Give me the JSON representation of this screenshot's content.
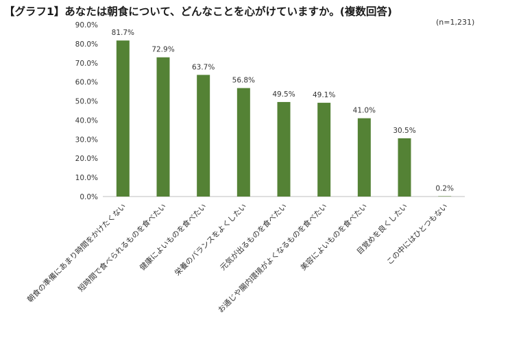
{
  "title": "【グラフ1】あなたは朝食について、どんなことを心がけていますか。(複数回答)",
  "note": "(n=1,231)",
  "colors": {
    "bar": "#548235",
    "axis": "#bfbfbf"
  },
  "chart_data": {
    "type": "bar",
    "categories": [
      "朝食の準備にあまり時間をかけたくない",
      "短時間で食べられるものを食べたい",
      "健康によいものを食べたい",
      "栄養のバランスをよくしたい",
      "元気が出るものを食べたい",
      "お通じや腸内環境がよくなるものを食べたい",
      "美容によいものを食べたい",
      "目覚めを良くしたい",
      "この中にはひとつもない"
    ],
    "values": [
      81.7,
      72.9,
      63.7,
      56.8,
      49.5,
      49.1,
      41.0,
      30.5,
      0.2
    ],
    "value_labels": [
      "81.7%",
      "72.9%",
      "63.7%",
      "56.8%",
      "49.5%",
      "49.1%",
      "41.0%",
      "30.5%",
      "0.2%"
    ],
    "y_ticks": [
      "0.0%",
      "10.0%",
      "20.0%",
      "30.0%",
      "40.0%",
      "50.0%",
      "60.0%",
      "70.0%",
      "80.0%",
      "90.0%"
    ],
    "ylim": [
      0,
      90
    ],
    "grid": false,
    "legend": "none"
  }
}
